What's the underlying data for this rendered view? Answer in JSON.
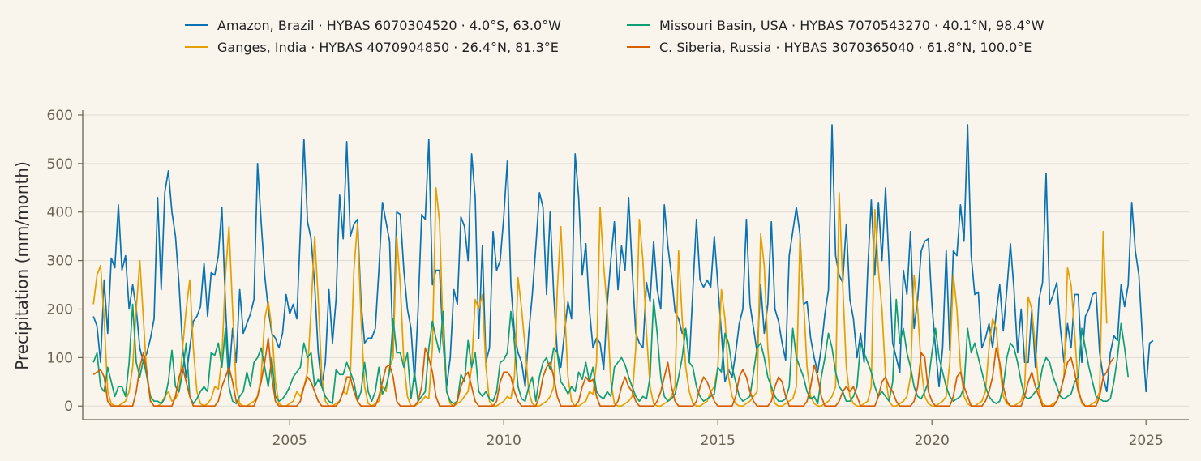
{
  "chart_data": {
    "type": "line",
    "title": "",
    "xlabel": "",
    "ylabel": "Precipitation (mm/month)",
    "x_start": "2000-06",
    "x_step": "1 month",
    "xlim": [
      "2000-03",
      "2026-01"
    ],
    "ylim": [
      -28,
      610
    ],
    "xticks": [
      "2005",
      "2010",
      "2015",
      "2020",
      "2025"
    ],
    "yticks": [
      0,
      100,
      200,
      300,
      400,
      500,
      600
    ],
    "grid": "horizontal",
    "legend_position": "top-center",
    "colors": {
      "background": "#faf5ec",
      "grid": "#dfdbd3",
      "axis": "#6b6456"
    },
    "series": [
      {
        "name": "Amazon, Brazil · HYBAS 6070304520 · 4.0°S, 63.0°W",
        "color": "#0a72b2",
        "values": [
          185,
          165,
          90,
          260,
          150,
          305,
          285,
          415,
          280,
          310,
          200,
          250,
          200,
          120,
          90,
          110,
          140,
          180,
          430,
          240,
          440,
          485,
          400,
          350,
          250,
          120,
          60,
          120,
          175,
          185,
          205,
          295,
          185,
          275,
          270,
          310,
          410,
          210,
          60,
          160,
          90,
          240,
          150,
          170,
          190,
          220,
          500,
          380,
          270,
          200,
          150,
          140,
          120,
          150,
          230,
          190,
          210,
          180,
          360,
          550,
          380,
          345,
          250,
          110,
          40,
          90,
          240,
          130,
          220,
          435,
          345,
          545,
          350,
          375,
          385,
          215,
          130,
          140,
          140,
          160,
          280,
          420,
          380,
          340,
          110,
          400,
          395,
          280,
          200,
          160,
          50,
          200,
          395,
          385,
          550,
          250,
          280,
          280,
          130,
          40,
          100,
          240,
          210,
          390,
          370,
          300,
          520,
          430,
          140,
          330,
          90,
          120,
          360,
          280,
          300,
          390,
          505,
          250,
          150,
          110,
          90,
          40,
          150,
          230,
          330,
          440,
          410,
          230,
          400,
          230,
          110,
          80,
          150,
          215,
          180,
          520,
          430,
          270,
          335,
          200,
          120,
          140,
          130,
          75,
          210,
          300,
          380,
          240,
          330,
          280,
          430,
          280,
          150,
          130,
          120,
          255,
          215,
          340,
          240,
          200,
          415,
          330,
          270,
          195,
          180,
          150,
          160,
          90,
          240,
          385,
          260,
          245,
          260,
          245,
          350,
          250,
          150,
          50,
          75,
          60,
          110,
          170,
          200,
          385,
          210,
          160,
          110,
          250,
          150,
          210,
          380,
          200,
          175,
          130,
          95,
          310,
          360,
          410,
          355,
          210,
          215,
          140,
          100,
          70,
          120,
          190,
          240,
          580,
          310,
          270,
          255,
          375,
          220,
          180,
          100,
          150,
          90,
          280,
          425,
          270,
          420,
          300,
          450,
          290,
          130,
          100,
          70,
          280,
          230,
          360,
          160,
          220,
          320,
          340,
          345,
          210,
          120,
          40,
          120,
          320,
          115,
          320,
          310,
          415,
          340,
          580,
          310,
          230,
          235,
          120,
          140,
          170,
          120,
          190,
          250,
          155,
          240,
          335,
          240,
          110,
          200,
          90,
          90,
          200,
          80,
          220,
          255,
          480,
          210,
          230,
          255,
          160,
          90,
          170,
          120,
          230,
          230,
          90,
          185,
          200,
          230,
          235,
          110,
          60,
          30,
          110,
          145,
          135,
          250,
          205,
          250,
          420,
          320,
          270,
          140,
          30,
          130,
          135
        ]
      },
      {
        "name": "Missouri Basin, USA · HYBAS 7070543270 · 40.1°N, 98.4°W",
        "color": "#0e9e74",
        "values": [
          90,
          110,
          40,
          30,
          80,
          50,
          20,
          40,
          40,
          20,
          90,
          210,
          90,
          60,
          95,
          60,
          20,
          10,
          10,
          5,
          15,
          50,
          115,
          40,
          30,
          70,
          130,
          20,
          5,
          15,
          30,
          40,
          30,
          110,
          105,
          130,
          80,
          160,
          40,
          10,
          5,
          20,
          30,
          70,
          40,
          90,
          100,
          120,
          80,
          40,
          100,
          20,
          10,
          15,
          25,
          40,
          60,
          70,
          80,
          130,
          100,
          110,
          40,
          55,
          40,
          20,
          10,
          5,
          75,
          65,
          65,
          90,
          70,
          50,
          10,
          30,
          90,
          30,
          10,
          30,
          80,
          25,
          40,
          70,
          180,
          110,
          110,
          80,
          110,
          15,
          70,
          10,
          20,
          30,
          120,
          175,
          140,
          110,
          195,
          30,
          10,
          5,
          10,
          65,
          50,
          135,
          80,
          110,
          30,
          20,
          30,
          15,
          10,
          30,
          90,
          95,
          110,
          195,
          130,
          40,
          15,
          10,
          40,
          60,
          10,
          60,
          90,
          100,
          75,
          120,
          110,
          50,
          40,
          25,
          40,
          30,
          70,
          55,
          90,
          50,
          80,
          30,
          20,
          15,
          30,
          20,
          80,
          90,
          100,
          85,
          60,
          40,
          20,
          10,
          20,
          15,
          60,
          220,
          150,
          60,
          20,
          10,
          15,
          25,
          60,
          100,
          160,
          90,
          80,
          40,
          20,
          10,
          15,
          20,
          25,
          80,
          70,
          150,
          130,
          80,
          50,
          20,
          10,
          15,
          20,
          70,
          120,
          130,
          100,
          60,
          40,
          20,
          10,
          10,
          15,
          40,
          160,
          100,
          80,
          60,
          30,
          15,
          20,
          5,
          60,
          100,
          150,
          120,
          70,
          40,
          30,
          10,
          10,
          20,
          40,
          130,
          110,
          90,
          70,
          40,
          20,
          30,
          20,
          10,
          50,
          220,
          130,
          160,
          110,
          80,
          40,
          20,
          15,
          30,
          50,
          110,
          160,
          100,
          70,
          40,
          20,
          10,
          15,
          20,
          40,
          160,
          110,
          130,
          100,
          70,
          40,
          20,
          10,
          5,
          10,
          40,
          100,
          130,
          120,
          90,
          50,
          20,
          15,
          20,
          30,
          40,
          80,
          100,
          90,
          60,
          40,
          20,
          15,
          20,
          25,
          50,
          60,
          160,
          120,
          80,
          50,
          20,
          15,
          10,
          10,
          15,
          50,
          100,
          170,
          120,
          60
        ]
      },
      {
        "name": "Ganges, India · HYBAS 4070904850 · 26.4°N, 81.3°E",
        "color": "#e69f00",
        "values": [
          210,
          270,
          290,
          180,
          30,
          5,
          0,
          0,
          5,
          10,
          30,
          80,
          200,
          300,
          180,
          60,
          10,
          0,
          0,
          5,
          20,
          30,
          10,
          15,
          30,
          120,
          200,
          260,
          120,
          30,
          5,
          0,
          5,
          15,
          40,
          35,
          100,
          270,
          370,
          200,
          40,
          5,
          0,
          0,
          5,
          10,
          20,
          60,
          180,
          215,
          160,
          50,
          5,
          0,
          0,
          5,
          10,
          30,
          20,
          40,
          70,
          200,
          350,
          220,
          60,
          10,
          0,
          0,
          5,
          10,
          30,
          25,
          60,
          280,
          375,
          180,
          40,
          5,
          0,
          5,
          10,
          40,
          30,
          80,
          100,
          350,
          250,
          90,
          20,
          0,
          0,
          5,
          10,
          20,
          15,
          120,
          450,
          380,
          150,
          30,
          5,
          0,
          5,
          10,
          20,
          30,
          80,
          220,
          200,
          230,
          80,
          10,
          0,
          0,
          5,
          10,
          20,
          15,
          60,
          265,
          200,
          120,
          30,
          5,
          0,
          0,
          5,
          10,
          20,
          40,
          240,
          370,
          210,
          60,
          10,
          0,
          0,
          5,
          10,
          30,
          25,
          90,
          410,
          290,
          200,
          50,
          5,
          0,
          0,
          5,
          10,
          20,
          120,
          385,
          300,
          150,
          40,
          5,
          0,
          0,
          5,
          10,
          20,
          40,
          320,
          180,
          80,
          30,
          5,
          0,
          0,
          5,
          10,
          30,
          40,
          80,
          240,
          180,
          60,
          20,
          5,
          0,
          0,
          5,
          10,
          20,
          30,
          355,
          290,
          120,
          30,
          5,
          0,
          0,
          5,
          10,
          15,
          40,
          345,
          220,
          80,
          20,
          5,
          0,
          0,
          5,
          10,
          20,
          40,
          440,
          250,
          80,
          20,
          5,
          0,
          0,
          5,
          10,
          40,
          405,
          280,
          200,
          60,
          10,
          0,
          0,
          5,
          10,
          20,
          60,
          270,
          200,
          80,
          20,
          5,
          0,
          0,
          5,
          10,
          20,
          90,
          270,
          200,
          80,
          20,
          5,
          0,
          0,
          5,
          10,
          30,
          120,
          180,
          160,
          80,
          20,
          5,
          0,
          0,
          5,
          10,
          40,
          225,
          200,
          120,
          30,
          5,
          0,
          0,
          5,
          10,
          30,
          60,
          285,
          250,
          150,
          40,
          5,
          0,
          0,
          5,
          10,
          30,
          360,
          170
        ]
      },
      {
        "name": "C. Siberia, Russia · HYBAS 3070365040 · 61.8°N, 100.0°E",
        "color": "#d55e00",
        "values": [
          65,
          70,
          75,
          60,
          10,
          0,
          0,
          0,
          0,
          0,
          0,
          0,
          30,
          80,
          110,
          70,
          10,
          0,
          0,
          0,
          0,
          0,
          0,
          20,
          60,
          80,
          50,
          20,
          0,
          0,
          0,
          0,
          0,
          0,
          0,
          10,
          40,
          60,
          80,
          50,
          10,
          0,
          0,
          0,
          0,
          0,
          20,
          50,
          90,
          140,
          60,
          10,
          0,
          0,
          0,
          0,
          0,
          0,
          10,
          40,
          60,
          50,
          30,
          10,
          0,
          0,
          0,
          0,
          0,
          10,
          30,
          60,
          60,
          30,
          10,
          0,
          0,
          0,
          0,
          0,
          20,
          50,
          80,
          85,
          60,
          10,
          0,
          0,
          0,
          0,
          0,
          10,
          40,
          120,
          100,
          70,
          20,
          0,
          0,
          0,
          0,
          0,
          10,
          40,
          60,
          70,
          40,
          10,
          0,
          0,
          0,
          0,
          0,
          10,
          50,
          70,
          70,
          60,
          30,
          10,
          0,
          0,
          0,
          0,
          0,
          20,
          60,
          80,
          90,
          60,
          20,
          0,
          0,
          0,
          0,
          0,
          10,
          40,
          60,
          50,
          55,
          20,
          0,
          0,
          0,
          0,
          0,
          10,
          40,
          60,
          40,
          30,
          10,
          0,
          0,
          0,
          0,
          0,
          10,
          30,
          60,
          90,
          40,
          10,
          0,
          0,
          0,
          0,
          0,
          10,
          40,
          60,
          50,
          30,
          10,
          0,
          0,
          0,
          0,
          0,
          20,
          60,
          75,
          60,
          30,
          10,
          0,
          0,
          0,
          0,
          10,
          40,
          60,
          50,
          20,
          0,
          0,
          0,
          0,
          0,
          10,
          40,
          85,
          60,
          20,
          0,
          0,
          0,
          0,
          10,
          30,
          40,
          30,
          40,
          20,
          0,
          0,
          0,
          0,
          0,
          20,
          50,
          60,
          40,
          30,
          10,
          0,
          0,
          0,
          0,
          10,
          40,
          110,
          100,
          30,
          10,
          0,
          0,
          0,
          0,
          0,
          20,
          60,
          70,
          40,
          20,
          0,
          0,
          0,
          0,
          10,
          30,
          60,
          120,
          90,
          40,
          10,
          0,
          0,
          0,
          0,
          20,
          50,
          70,
          40,
          20,
          0,
          0,
          0,
          0,
          10,
          30,
          60,
          90,
          100,
          70,
          30,
          10,
          0,
          0,
          0,
          0,
          20,
          60,
          70,
          90,
          100
        ]
      }
    ]
  }
}
